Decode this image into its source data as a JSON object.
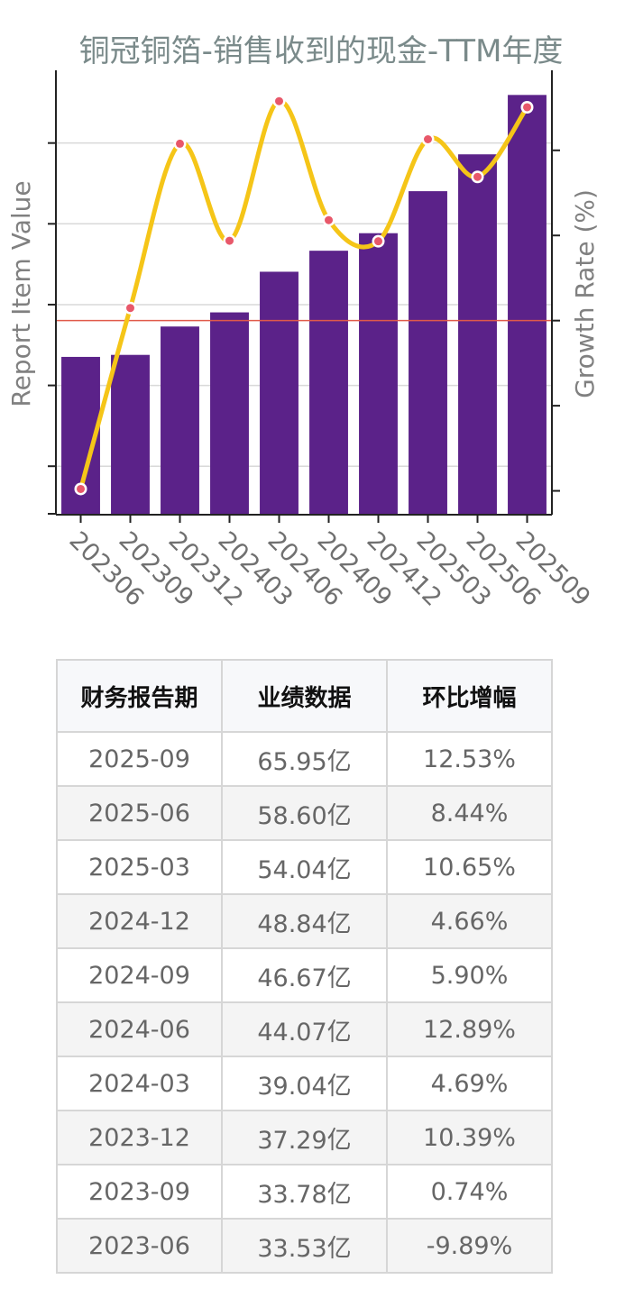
{
  "chart_data": {
    "type": "bar",
    "title": "铜冠铜箔-销售收到的现金-TTM年度",
    "ylabel": "Report Item Value",
    "y2label": "Growth Rate (%)",
    "categories": [
      "202306",
      "202309",
      "202312",
      "202403",
      "202406",
      "202409",
      "202412",
      "202503",
      "202506",
      "202509"
    ],
    "series": [
      {
        "type": "bar",
        "color": "#5b2289",
        "values": [
          33.53,
          33.78,
          37.29,
          39.04,
          44.07,
          46.67,
          48.84,
          54.04,
          58.6,
          65.95
        ]
      },
      {
        "type": "line",
        "color": "#f5c518",
        "values": [
          -9.89,
          0.74,
          10.39,
          4.69,
          12.89,
          5.9,
          4.66,
          10.65,
          8.44,
          12.53
        ]
      }
    ],
    "reference_line": {
      "axis": "y2",
      "value": 0,
      "color": "#e05a4a"
    },
    "grid": true
  },
  "table": {
    "headers": [
      "财务报告期",
      "业绩数据",
      "环比增幅"
    ],
    "rows": [
      [
        "2025-09",
        "65.95亿",
        "12.53%"
      ],
      [
        "2025-06",
        "58.60亿",
        "8.44%"
      ],
      [
        "2025-03",
        "54.04亿",
        "10.65%"
      ],
      [
        "2024-12",
        "48.84亿",
        "4.66%"
      ],
      [
        "2024-09",
        "46.67亿",
        "5.90%"
      ],
      [
        "2024-06",
        "44.07亿",
        "12.89%"
      ],
      [
        "2024-03",
        "39.04亿",
        "4.69%"
      ],
      [
        "2023-12",
        "37.29亿",
        "10.39%"
      ],
      [
        "2023-09",
        "33.78亿",
        "0.74%"
      ],
      [
        "2023-06",
        "33.53亿",
        "-9.89%"
      ]
    ]
  }
}
